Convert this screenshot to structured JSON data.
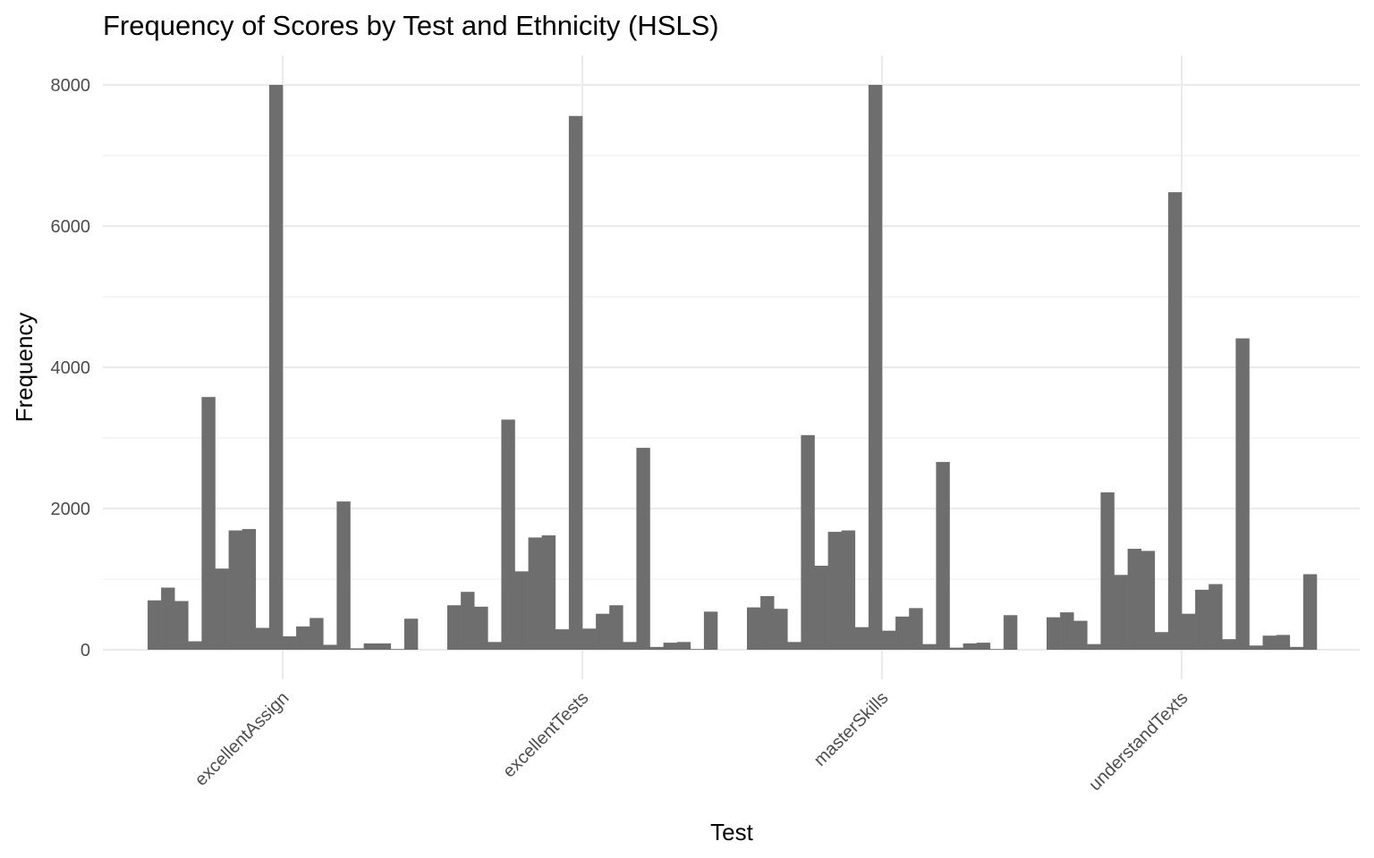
{
  "chart_data": {
    "type": "bar",
    "title": "Frequency of Scores by Test and Ethnicity (HSLS)",
    "xlabel": "Test",
    "ylabel": "Frequency",
    "ylim": [
      0,
      8400
    ],
    "yticks": [
      0,
      2000,
      4000,
      6000,
      8000
    ],
    "grid": true,
    "bar_color": "#6e6e6e",
    "categories": [
      "excellentAssign",
      "excellentTests",
      "masterSkills",
      "understandTexts"
    ],
    "groups": [
      {
        "test": "excellentAssign",
        "values": [
          700,
          880,
          690,
          120,
          3580,
          1150,
          1690,
          1710,
          310,
          8000,
          190,
          330,
          450,
          70,
          2100,
          20,
          90,
          90,
          10,
          440
        ]
      },
      {
        "test": "excellentTests",
        "values": [
          630,
          820,
          610,
          110,
          3260,
          1110,
          1590,
          1620,
          290,
          7560,
          300,
          510,
          630,
          110,
          2860,
          40,
          100,
          110,
          10,
          540
        ]
      },
      {
        "test": "masterSkills",
        "values": [
          600,
          760,
          580,
          110,
          3040,
          1190,
          1670,
          1690,
          320,
          8000,
          270,
          470,
          590,
          80,
          2660,
          30,
          90,
          100,
          10,
          490
        ]
      },
      {
        "test": "understandTexts",
        "values": [
          460,
          530,
          410,
          80,
          2230,
          1060,
          1430,
          1400,
          250,
          6480,
          510,
          850,
          930,
          150,
          4410,
          60,
          200,
          210,
          40,
          1070
        ]
      }
    ]
  }
}
